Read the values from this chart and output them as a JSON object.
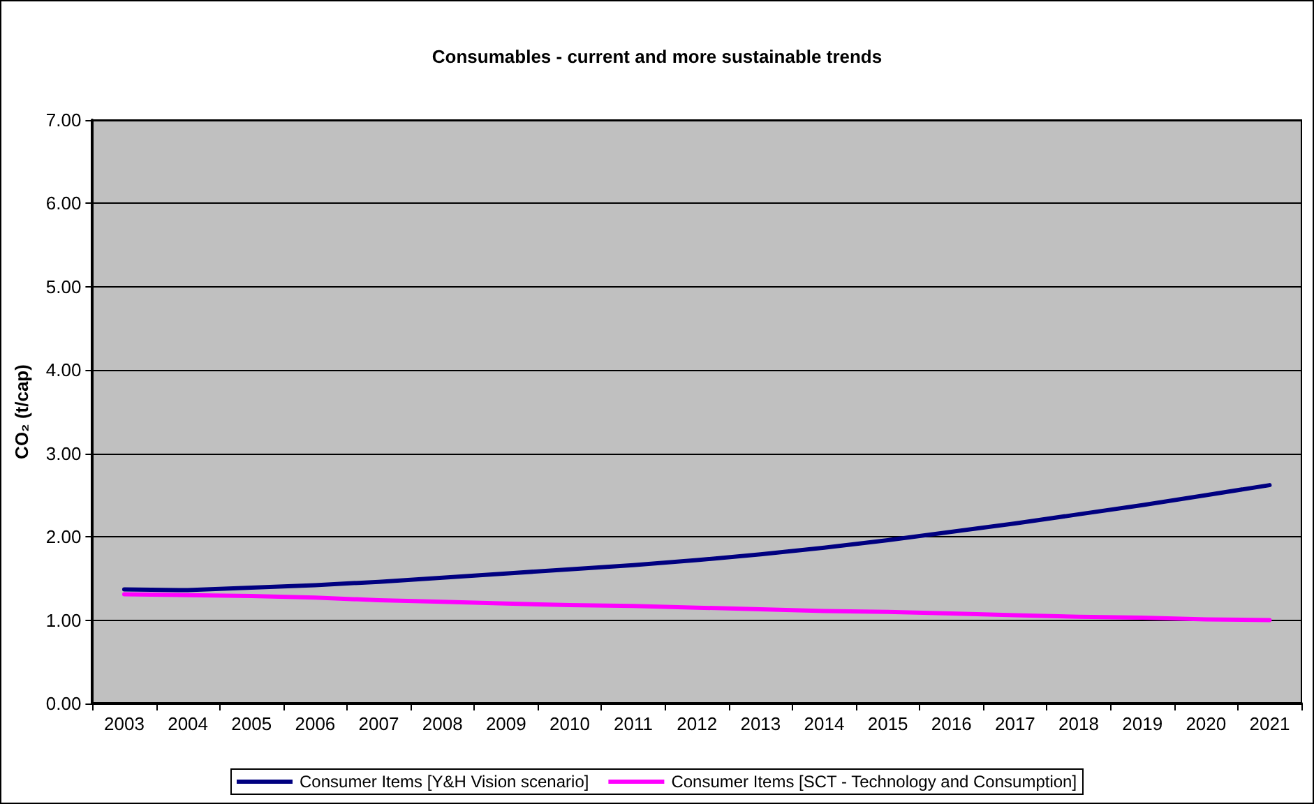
{
  "chart_data": {
    "type": "line",
    "title": "Consumables - current and more sustainable trends",
    "ylabel": "CO₂ (t/cap)",
    "categories": [
      "2003",
      "2004",
      "2005",
      "2006",
      "2007",
      "2008",
      "2009",
      "2010",
      "2011",
      "2012",
      "2013",
      "2014",
      "2015",
      "2016",
      "2017",
      "2018",
      "2019",
      "2020",
      "2021"
    ],
    "series": [
      {
        "name": "Consumer Items [Y&H Vision scenario]",
        "color": "#000080",
        "values": [
          1.37,
          1.36,
          1.39,
          1.42,
          1.46,
          1.51,
          1.56,
          1.61,
          1.66,
          1.72,
          1.79,
          1.87,
          1.96,
          2.06,
          2.16,
          2.27,
          2.38,
          2.5,
          2.62
        ]
      },
      {
        "name": "Consumer Items [SCT - Technology and Consumption]",
        "color": "#ff00ff",
        "values": [
          1.31,
          1.3,
          1.29,
          1.27,
          1.24,
          1.22,
          1.2,
          1.18,
          1.17,
          1.15,
          1.13,
          1.11,
          1.1,
          1.08,
          1.06,
          1.04,
          1.03,
          1.01,
          1.0
        ]
      }
    ],
    "ylim": [
      0,
      7
    ],
    "yticks": [
      {
        "value": 0,
        "label": "0.00"
      },
      {
        "value": 1,
        "label": "1.00"
      },
      {
        "value": 2,
        "label": "2.00"
      },
      {
        "value": 3,
        "label": "3.00"
      },
      {
        "value": 4,
        "label": "4.00"
      },
      {
        "value": 5,
        "label": "5.00"
      },
      {
        "value": 6,
        "label": "6.00"
      },
      {
        "value": 7,
        "label": "7.00"
      }
    ],
    "grid": "y",
    "legend": "bottom",
    "marker": "none",
    "line_style": "solid"
  }
}
